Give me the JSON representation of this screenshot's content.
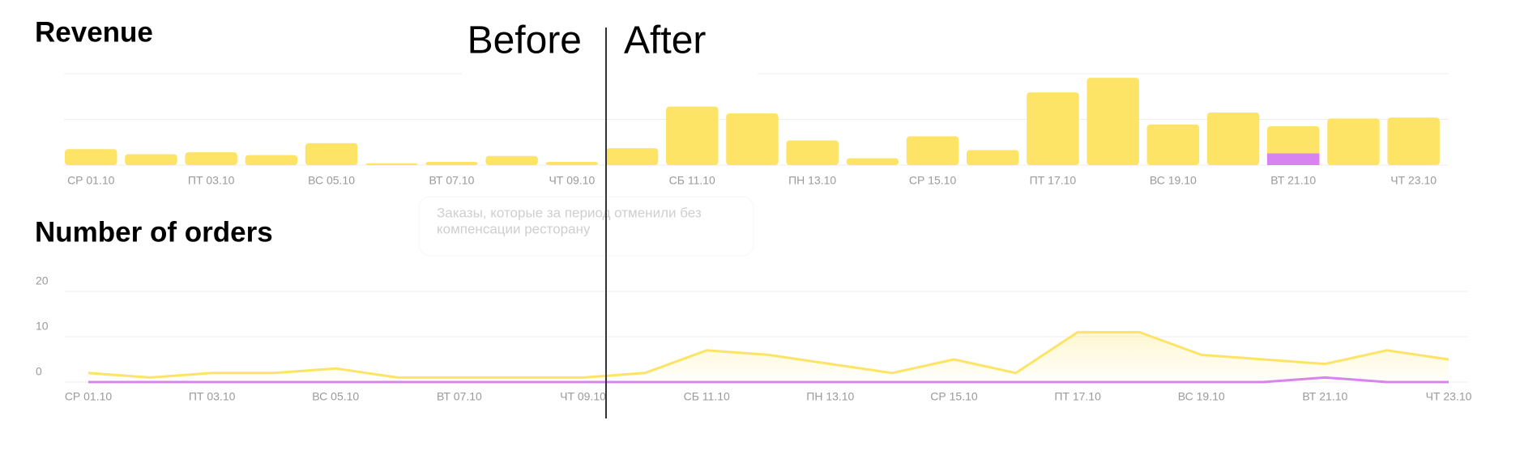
{
  "chart_data": [
    {
      "type": "bar",
      "title": "Revenue",
      "categories": [
        "СР 01.10",
        null,
        "ПТ 03.10",
        null,
        "ВС 05.10",
        null,
        "ВТ 07.10",
        null,
        "ЧТ 09.10",
        null,
        "СБ 11.10",
        null,
        "ПН 13.10",
        null,
        "СР 15.10",
        null,
        "ПТ 17.10",
        null,
        "ВС 19.10",
        null,
        "ВТ 21.10",
        null,
        "ЧТ 23.10"
      ],
      "series": [
        {
          "color": "#fde467",
          "values": [
            0.35,
            0.24,
            0.28,
            0.22,
            0.48,
            0.04,
            0.07,
            0.2,
            0.07,
            0.37,
            1.28,
            1.13,
            0.54,
            0.15,
            0.63,
            0.33,
            1.59,
            1.91,
            0.89,
            1.15,
            0.59,
            1.02,
            1.04
          ]
        },
        {
          "color": "#d884f0",
          "values": [
            0,
            0,
            0,
            0,
            0,
            0,
            0,
            0,
            0,
            0,
            0,
            0,
            0,
            0,
            0,
            0,
            0,
            0,
            0,
            0,
            0.26,
            0,
            0
          ]
        }
      ],
      "ylim": [
        0,
        2
      ],
      "gridlines": [
        0,
        1,
        2
      ]
    },
    {
      "type": "line",
      "title": "Number of orders",
      "categories": [
        "СР 01.10",
        null,
        "ПТ 03.10",
        null,
        "ВС 05.10",
        null,
        "ВТ 07.10",
        null,
        "ЧТ 09.10",
        null,
        "СБ 11.10",
        null,
        "ПН 13.10",
        null,
        "СР 15.10",
        null,
        "ПТ 17.10",
        null,
        "ВС 19.10",
        null,
        "ВТ 21.10",
        null,
        "ЧТ 23.10"
      ],
      "series": [
        {
          "color": "#fde467",
          "fill": true,
          "values": [
            2,
            1,
            2,
            2,
            3,
            1,
            1,
            1,
            1,
            2,
            7,
            6,
            4,
            2,
            5,
            2,
            11,
            11,
            6,
            5,
            4,
            7,
            5
          ]
        },
        {
          "color": "#d884f0",
          "values": [
            0,
            0,
            0,
            0,
            0,
            0,
            0,
            0,
            0,
            0,
            0,
            0,
            0,
            0,
            0,
            0,
            0,
            0,
            0,
            0,
            1,
            0,
            0
          ]
        }
      ],
      "ylim": [
        0,
        20
      ],
      "yticks": [
        0,
        10,
        20
      ],
      "grid": true
    }
  ],
  "annotations": {
    "before": "Before",
    "after": "After",
    "tooltip": [
      "Заказы, которые за период отменили без",
      "компенсации ресторану"
    ]
  }
}
